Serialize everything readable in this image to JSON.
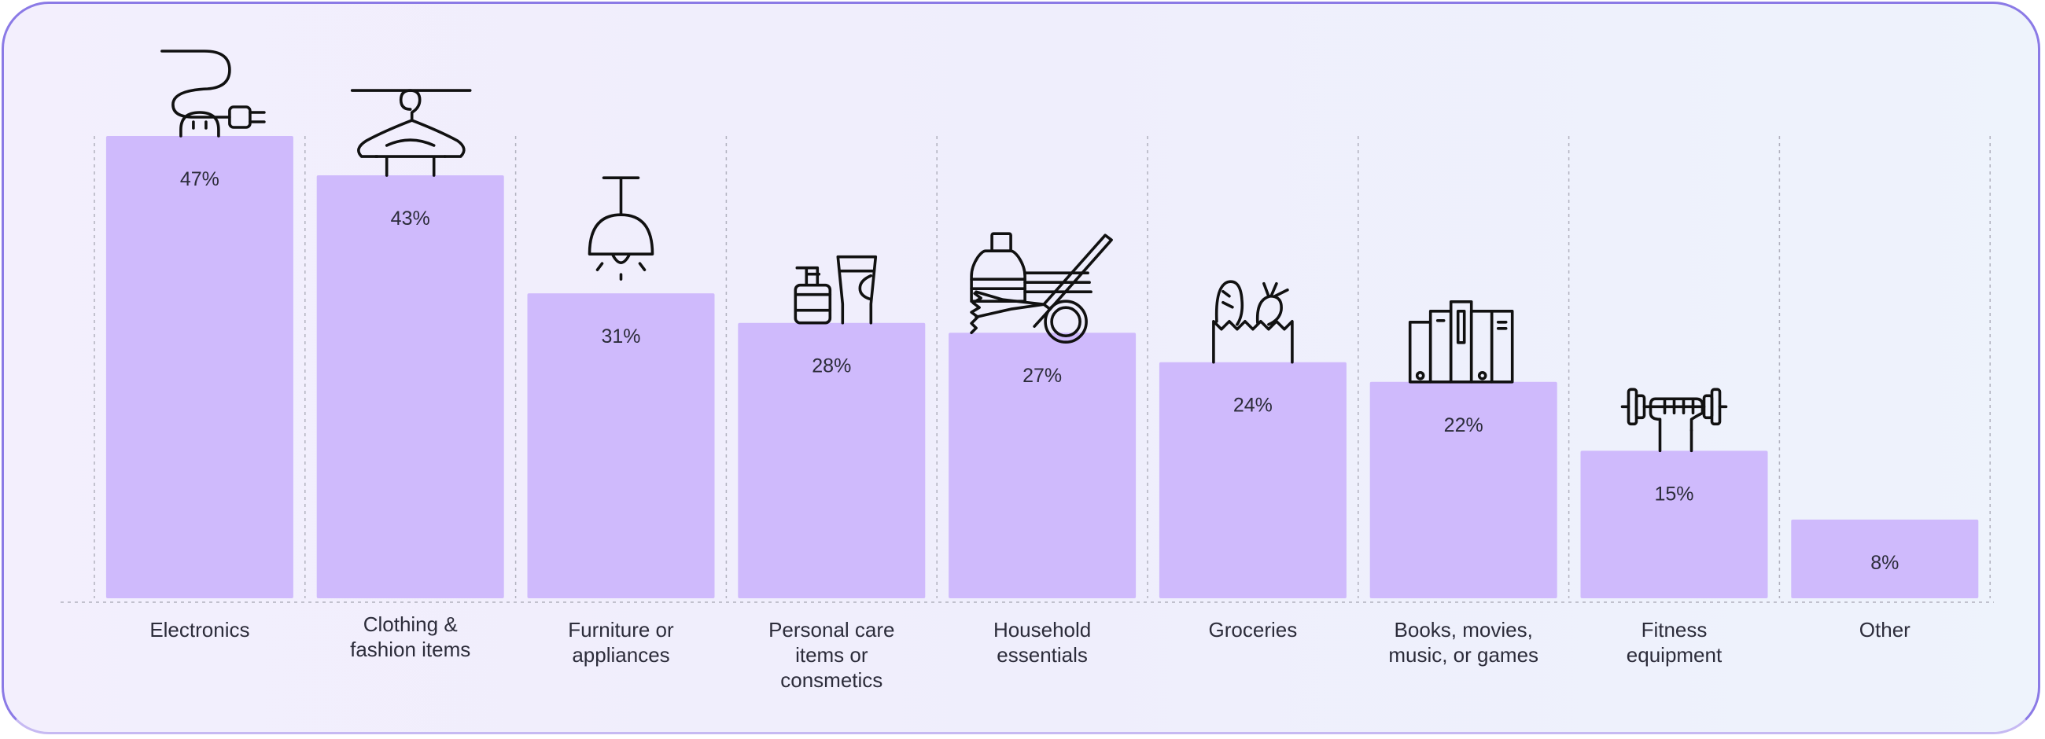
{
  "chart_data": {
    "type": "bar",
    "title": "",
    "xlabel": "",
    "ylabel": "",
    "ylim": [
      0,
      47
    ],
    "grid": false,
    "value_suffix": "%",
    "categories": [
      [
        "Electronics"
      ],
      [
        "Clothing &",
        "fashion items"
      ],
      [
        "Furniture or",
        "appliances"
      ],
      [
        "Personal care",
        "items or",
        "consmetics"
      ],
      [
        "Household",
        "essentials"
      ],
      [
        "Groceries"
      ],
      [
        "Books, movies,",
        "music, or games"
      ],
      [
        "Fitness",
        "equipment"
      ],
      [
        "Other"
      ]
    ],
    "values": [
      47,
      43,
      31,
      28,
      27,
      24,
      22,
      15,
      8
    ],
    "icons": [
      "plug-icon",
      "hanger-icon",
      "lamp-icon",
      "bottles-icon",
      "cleaning-icon",
      "grocery-bag-icon",
      "books-icon",
      "dumbbell-icon",
      ""
    ],
    "colors": {
      "bar": "#cfbafc",
      "border": "#8b7ae6",
      "text": "#2c2c3a"
    }
  }
}
